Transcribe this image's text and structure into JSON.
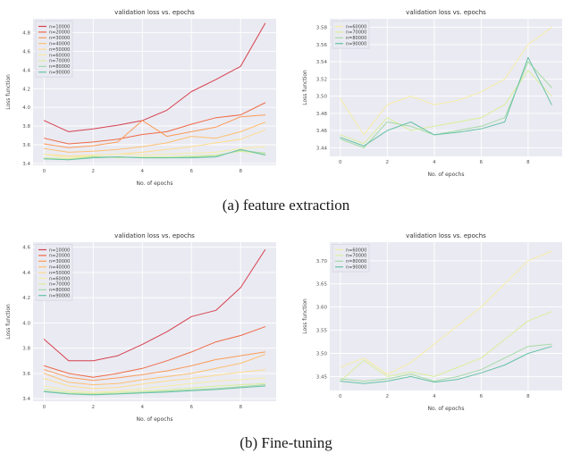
{
  "figure": {
    "captions": {
      "a": "(a) feature extraction",
      "b": "(b) Fine-tuning"
    }
  },
  "chart_data": [
    {
      "name": "feature-extraction-all-n",
      "type": "line",
      "title": "validation loss vs. epochs",
      "xlabel": "No. of epochs",
      "ylabel": "Loss function",
      "legend_position": "upper left",
      "grid": true,
      "x": [
        0,
        1,
        2,
        3,
        4,
        5,
        6,
        7,
        8,
        9
      ],
      "xticks": [
        0,
        2,
        4,
        6,
        8
      ],
      "xlim": [
        -0.45,
        9.45
      ],
      "ylim": [
        3.38,
        4.95
      ],
      "yticks": [
        3.4,
        3.6,
        3.8,
        4.0,
        4.2,
        4.4,
        4.6,
        4.8
      ],
      "ytick_decimals": 1,
      "series": [
        {
          "name": "n=10000",
          "color": "#d6404e",
          "values": [
            3.86,
            3.74,
            3.77,
            3.81,
            3.86,
            3.97,
            4.17,
            4.3,
            4.44,
            4.9
          ]
        },
        {
          "name": "n=20000",
          "color": "#ef6a46",
          "values": [
            3.67,
            3.61,
            3.63,
            3.66,
            3.71,
            3.74,
            3.82,
            3.89,
            3.92,
            4.05
          ]
        },
        {
          "name": "n=30000",
          "color": "#fa9b58",
          "values": [
            3.61,
            3.57,
            3.59,
            3.63,
            3.86,
            3.69,
            3.74,
            3.79,
            3.9,
            3.92
          ]
        },
        {
          "name": "n=40000",
          "color": "#fdc070",
          "values": [
            3.56,
            3.52,
            3.53,
            3.55,
            3.58,
            3.62,
            3.69,
            3.67,
            3.74,
            3.84
          ]
        },
        {
          "name": "n=50000",
          "color": "#fedd8d",
          "values": [
            3.5,
            3.48,
            3.49,
            3.5,
            3.52,
            3.55,
            3.58,
            3.62,
            3.66,
            3.76
          ]
        },
        {
          "name": "n=60000",
          "color": "#f6eda5",
          "values": [
            3.5,
            3.46,
            3.49,
            3.5,
            3.49,
            3.5,
            3.51,
            3.52,
            3.56,
            3.58
          ]
        },
        {
          "name": "n=70000",
          "color": "#d9ef9b",
          "values": [
            3.46,
            3.45,
            3.48,
            3.46,
            3.47,
            3.47,
            3.48,
            3.49,
            3.53,
            3.5
          ]
        },
        {
          "name": "n=80000",
          "color": "#a6dba4",
          "values": [
            3.45,
            3.44,
            3.47,
            3.47,
            3.46,
            3.46,
            3.47,
            3.48,
            3.54,
            3.51
          ]
        },
        {
          "name": "n=90000",
          "color": "#66c2a5",
          "values": [
            3.45,
            3.44,
            3.46,
            3.47,
            3.46,
            3.46,
            3.46,
            3.47,
            3.55,
            3.49
          ]
        }
      ]
    },
    {
      "name": "feature-extraction-large-n",
      "type": "line",
      "title": "validation loss vs. epochs",
      "xlabel": "No. of epochs",
      "ylabel": "Loss function",
      "legend_position": "upper left",
      "grid": true,
      "x": [
        0,
        1,
        2,
        3,
        4,
        5,
        6,
        7,
        8,
        9
      ],
      "xticks": [
        0,
        2,
        4,
        6,
        8
      ],
      "xlim": [
        -0.45,
        9.45
      ],
      "ylim": [
        3.43,
        3.59
      ],
      "yticks": [
        3.44,
        3.46,
        3.48,
        3.5,
        3.52,
        3.54,
        3.56,
        3.58
      ],
      "ytick_decimals": 2,
      "series": [
        {
          "name": "n=60000",
          "color": "#f6eda5",
          "values": [
            3.497,
            3.455,
            3.49,
            3.5,
            3.49,
            3.495,
            3.505,
            3.52,
            3.56,
            3.58
          ]
        },
        {
          "name": "n=70000",
          "color": "#d9ef9b",
          "values": [
            3.455,
            3.445,
            3.475,
            3.46,
            3.465,
            3.47,
            3.475,
            3.49,
            3.53,
            3.5
          ]
        },
        {
          "name": "n=80000",
          "color": "#a6dba4",
          "values": [
            3.45,
            3.44,
            3.47,
            3.465,
            3.455,
            3.46,
            3.465,
            3.475,
            3.54,
            3.51
          ]
        },
        {
          "name": "n=90000",
          "color": "#66c2a5",
          "values": [
            3.452,
            3.442,
            3.46,
            3.47,
            3.455,
            3.458,
            3.462,
            3.47,
            3.545,
            3.49
          ]
        }
      ]
    },
    {
      "name": "fine-tuning-all-n",
      "type": "line",
      "title": "validation loss vs. epochs",
      "xlabel": "No. of epochs",
      "ylabel": "Loss function",
      "legend_position": "upper left",
      "grid": true,
      "x": [
        0,
        1,
        2,
        3,
        4,
        5,
        6,
        7,
        8,
        9
      ],
      "xticks": [
        0,
        2,
        4,
        6,
        8
      ],
      "xlim": [
        -0.45,
        9.45
      ],
      "ylim": [
        3.38,
        4.64
      ],
      "yticks": [
        3.4,
        3.6,
        3.8,
        4.0,
        4.2,
        4.4,
        4.6
      ],
      "ytick_decimals": 1,
      "series": [
        {
          "name": "n=10000",
          "color": "#d6404e",
          "values": [
            3.87,
            3.7,
            3.7,
            3.74,
            3.83,
            3.93,
            4.05,
            4.1,
            4.28,
            4.58
          ]
        },
        {
          "name": "n=20000",
          "color": "#ef6a46",
          "values": [
            3.66,
            3.6,
            3.57,
            3.6,
            3.64,
            3.7,
            3.77,
            3.85,
            3.9,
            3.97
          ]
        },
        {
          "name": "n=30000",
          "color": "#fa9b58",
          "values": [
            3.63,
            3.57,
            3.545,
            3.565,
            3.59,
            3.62,
            3.66,
            3.71,
            3.74,
            3.77
          ]
        },
        {
          "name": "n=40000",
          "color": "#fdc070",
          "values": [
            3.6,
            3.53,
            3.51,
            3.52,
            3.55,
            3.575,
            3.6,
            3.64,
            3.68,
            3.75
          ]
        },
        {
          "name": "n=50000",
          "color": "#fedd8d",
          "values": [
            3.56,
            3.5,
            3.48,
            3.49,
            3.515,
            3.54,
            3.56,
            3.585,
            3.61,
            3.63
          ]
        },
        {
          "name": "n=60000",
          "color": "#f6eda5",
          "values": [
            3.5,
            3.465,
            3.45,
            3.46,
            3.48,
            3.5,
            3.52,
            3.54,
            3.55,
            3.565
          ]
        },
        {
          "name": "n=70000",
          "color": "#d9ef9b",
          "values": [
            3.475,
            3.45,
            3.44,
            3.45,
            3.46,
            3.47,
            3.485,
            3.5,
            3.51,
            3.52
          ]
        },
        {
          "name": "n=80000",
          "color": "#a6dba4",
          "values": [
            3.46,
            3.44,
            3.435,
            3.44,
            3.45,
            3.46,
            3.47,
            3.48,
            3.495,
            3.51
          ]
        },
        {
          "name": "n=90000",
          "color": "#66c2a5",
          "values": [
            3.455,
            3.437,
            3.43,
            3.437,
            3.445,
            3.453,
            3.463,
            3.473,
            3.487,
            3.5
          ]
        }
      ]
    },
    {
      "name": "fine-tuning-large-n",
      "type": "line",
      "title": "validation loss vs. epochs",
      "xlabel": "No. of epochs",
      "ylabel": "Loss function",
      "legend_position": "upper left",
      "grid": true,
      "x": [
        0,
        1,
        2,
        3,
        4,
        5,
        6,
        7,
        8,
        9
      ],
      "xticks": [
        0,
        2,
        4,
        6,
        8
      ],
      "xlim": [
        -0.45,
        9.45
      ],
      "ylim": [
        3.42,
        3.74
      ],
      "yticks": [
        3.45,
        3.5,
        3.55,
        3.6,
        3.65,
        3.7
      ],
      "ytick_decimals": 2,
      "series": [
        {
          "name": "n=60000",
          "color": "#f6eda5",
          "values": [
            3.47,
            3.49,
            3.455,
            3.48,
            3.52,
            3.56,
            3.6,
            3.65,
            3.7,
            3.72
          ]
        },
        {
          "name": "n=70000",
          "color": "#d9ef9b",
          "values": [
            3.44,
            3.485,
            3.45,
            3.46,
            3.45,
            3.47,
            3.49,
            3.53,
            3.57,
            3.59
          ]
        },
        {
          "name": "n=80000",
          "color": "#a6dba4",
          "values": [
            3.445,
            3.44,
            3.445,
            3.455,
            3.44,
            3.45,
            3.465,
            3.49,
            3.515,
            3.52
          ]
        },
        {
          "name": "n=90000",
          "color": "#66c2a5",
          "values": [
            3.44,
            3.435,
            3.44,
            3.45,
            3.438,
            3.444,
            3.458,
            3.475,
            3.5,
            3.515
          ]
        }
      ]
    }
  ]
}
